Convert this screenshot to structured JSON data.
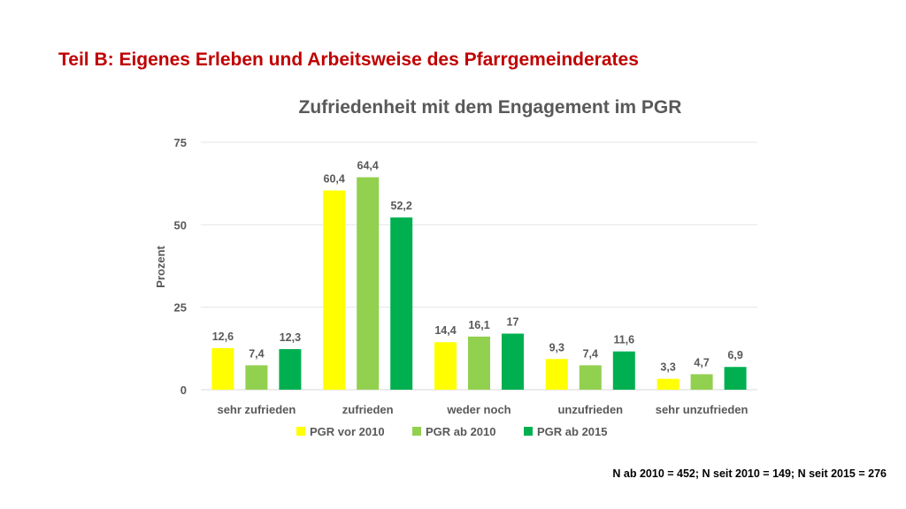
{
  "slide_title": "Teil B: Eigenes Erleben und Arbeitsweise des Pfarrgemeinderates",
  "footnote": "N ab 2010 = 452; N seit 2010 = 149; N seit 2015 = 276",
  "chart_data": {
    "type": "bar",
    "title": "Zufriedenheit mit dem Engagement im PGR",
    "xlabel": "",
    "ylabel": "Prozent",
    "ylim": [
      0,
      75
    ],
    "yticks": [
      0,
      25,
      50,
      75
    ],
    "grid": true,
    "legend_position": "bottom",
    "categories": [
      "sehr zufrieden",
      "zufrieden",
      "weder noch",
      "unzufrieden",
      "sehr unzufrieden"
    ],
    "series": [
      {
        "name": "PGR vor 2010",
        "color": "#ffff00",
        "values": [
          12.6,
          60.4,
          14.4,
          9.3,
          3.3
        ],
        "labels": [
          "12,6",
          "60,4",
          "14,4",
          "9,3",
          "3,3"
        ]
      },
      {
        "name": "PGR ab 2010",
        "color": "#92d050",
        "values": [
          7.4,
          64.4,
          16.1,
          7.4,
          4.7
        ],
        "labels": [
          "7,4",
          "64,4",
          "16,1",
          "7,4",
          "4,7"
        ]
      },
      {
        "name": "PGR ab 2015",
        "color": "#00b050",
        "values": [
          12.3,
          52.2,
          17,
          11.6,
          6.9
        ],
        "labels": [
          "12,3",
          "52,2",
          "17",
          "11,6",
          "6,9"
        ]
      }
    ]
  }
}
